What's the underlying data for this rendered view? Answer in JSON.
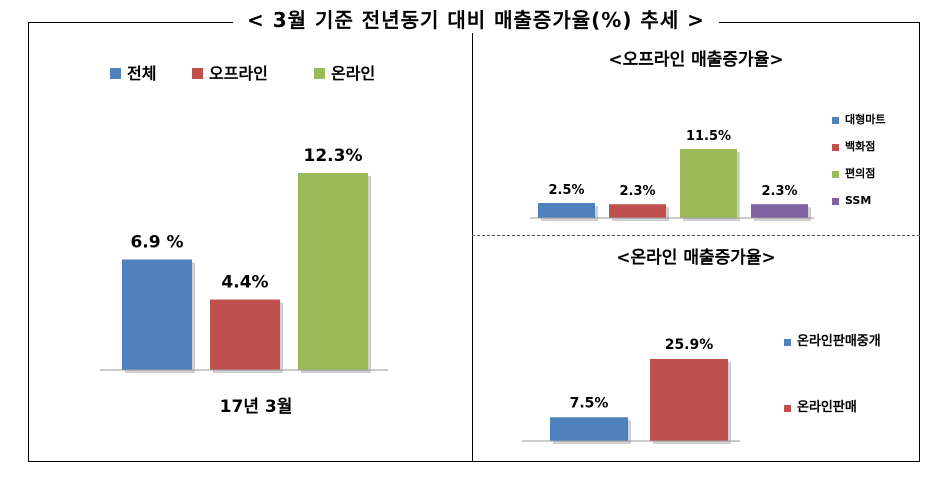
{
  "title": "< 3월 기준 전년동기 대비 매출증가율(%) 추세 >",
  "chart_data": [
    {
      "type": "bar",
      "categories": [
        "17년 3월"
      ],
      "series": [
        {
          "name": "전체",
          "values": [
            6.9
          ],
          "label": "6.9 %",
          "color": "#4F81BD"
        },
        {
          "name": "오프라인",
          "values": [
            4.4
          ],
          "label": "4.4%",
          "color": "#C0504D"
        },
        {
          "name": "온라인",
          "values": [
            12.3
          ],
          "label": "12.3%",
          "color": "#9BBB59"
        }
      ],
      "xlabel": "17년 3월",
      "legend": "top",
      "ylim": [
        0,
        13
      ]
    },
    {
      "type": "bar",
      "title": "<오프라인 매출증가율>",
      "series": [
        {
          "name": "대형마트",
          "values": [
            2.5
          ],
          "label": "2.5%",
          "color": "#4F81BD"
        },
        {
          "name": "백화점",
          "values": [
            2.3
          ],
          "label": "2.3%",
          "color": "#C0504D"
        },
        {
          "name": "편의점",
          "values": [
            11.5
          ],
          "label": "11.5%",
          "color": "#9BBB59"
        },
        {
          "name": "SSM",
          "values": [
            2.3
          ],
          "label": "2.3%",
          "color": "#8064A2"
        }
      ],
      "legend": "right",
      "ylim": [
        0,
        12
      ]
    },
    {
      "type": "bar",
      "title": "<온라인 매출증가율>",
      "series": [
        {
          "name": "온라인판매중개",
          "values": [
            7.5
          ],
          "label": "7.5%",
          "color": "#4F81BD"
        },
        {
          "name": "온라인판매",
          "values": [
            25.9
          ],
          "label": "25.9%",
          "color": "#C0504D"
        }
      ],
      "legend": "right",
      "ylim": [
        0,
        27
      ]
    }
  ]
}
